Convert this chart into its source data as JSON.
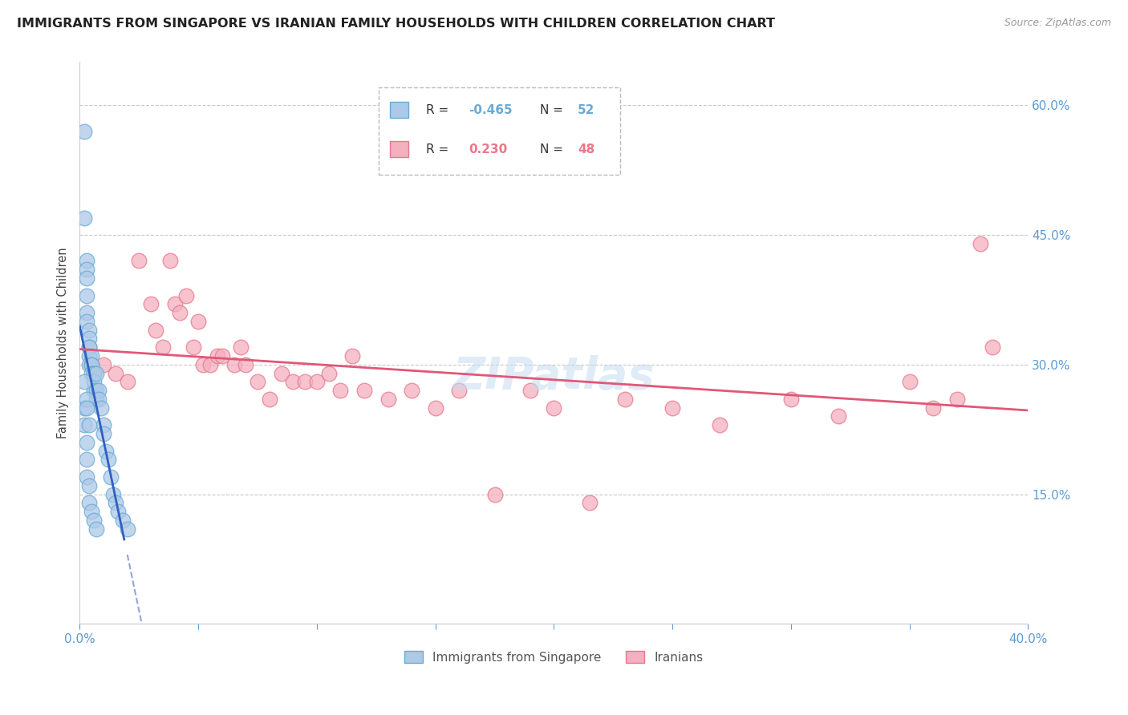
{
  "title": "IMMIGRANTS FROM SINGAPORE VS IRANIAN FAMILY HOUSEHOLDS WITH CHILDREN CORRELATION CHART",
  "source": "Source: ZipAtlas.com",
  "ylabel": "Family Households with Children",
  "xlim": [
    0.0,
    0.4
  ],
  "ylim": [
    0.0,
    0.65
  ],
  "yticks": [
    0.0,
    0.15,
    0.3,
    0.45,
    0.6
  ],
  "right_ytick_color": "#5b9bd5",
  "grid_color": "#c8c8c8",
  "watermark": "ZIPatlas",
  "series1_color": "#adc9e8",
  "series2_color": "#f4afc0",
  "series1_label": "Immigrants from Singapore",
  "series2_label": "Iranians",
  "series1_edgecolor": "#6aaad4",
  "series2_edgecolor": "#e8788a",
  "regression1_color": "#3060c0",
  "regression2_color": "#e05878",
  "singapore_x": [
    0.002,
    0.002,
    0.003,
    0.003,
    0.003,
    0.003,
    0.003,
    0.003,
    0.004,
    0.004,
    0.004,
    0.004,
    0.004,
    0.004,
    0.005,
    0.005,
    0.005,
    0.005,
    0.006,
    0.006,
    0.006,
    0.006,
    0.007,
    0.007,
    0.007,
    0.008,
    0.008,
    0.009,
    0.01,
    0.01,
    0.011,
    0.012,
    0.013,
    0.014,
    0.015,
    0.016,
    0.018,
    0.02,
    0.002,
    0.002,
    0.003,
    0.003,
    0.003,
    0.004,
    0.004,
    0.005,
    0.006,
    0.007,
    0.002,
    0.003,
    0.003,
    0.004
  ],
  "singapore_y": [
    0.57,
    0.47,
    0.42,
    0.41,
    0.4,
    0.38,
    0.36,
    0.35,
    0.34,
    0.33,
    0.32,
    0.32,
    0.31,
    0.3,
    0.31,
    0.3,
    0.3,
    0.29,
    0.29,
    0.29,
    0.28,
    0.27,
    0.29,
    0.27,
    0.26,
    0.27,
    0.26,
    0.25,
    0.23,
    0.22,
    0.2,
    0.19,
    0.17,
    0.15,
    0.14,
    0.13,
    0.12,
    0.11,
    0.25,
    0.23,
    0.21,
    0.19,
    0.17,
    0.16,
    0.14,
    0.13,
    0.12,
    0.11,
    0.28,
    0.26,
    0.25,
    0.23
  ],
  "iranian_x": [
    0.01,
    0.015,
    0.02,
    0.025,
    0.03,
    0.032,
    0.035,
    0.038,
    0.04,
    0.042,
    0.045,
    0.048,
    0.05,
    0.052,
    0.055,
    0.058,
    0.06,
    0.065,
    0.068,
    0.07,
    0.075,
    0.08,
    0.085,
    0.09,
    0.095,
    0.1,
    0.105,
    0.11,
    0.115,
    0.12,
    0.13,
    0.14,
    0.15,
    0.16,
    0.175,
    0.19,
    0.2,
    0.215,
    0.23,
    0.25,
    0.27,
    0.3,
    0.32,
    0.35,
    0.36,
    0.37,
    0.38,
    0.385
  ],
  "iranian_y": [
    0.3,
    0.29,
    0.28,
    0.42,
    0.37,
    0.34,
    0.32,
    0.42,
    0.37,
    0.36,
    0.38,
    0.32,
    0.35,
    0.3,
    0.3,
    0.31,
    0.31,
    0.3,
    0.32,
    0.3,
    0.28,
    0.26,
    0.29,
    0.28,
    0.28,
    0.28,
    0.29,
    0.27,
    0.31,
    0.27,
    0.26,
    0.27,
    0.25,
    0.27,
    0.15,
    0.27,
    0.25,
    0.14,
    0.26,
    0.25,
    0.23,
    0.26,
    0.24,
    0.28,
    0.25,
    0.26,
    0.44,
    0.32
  ]
}
